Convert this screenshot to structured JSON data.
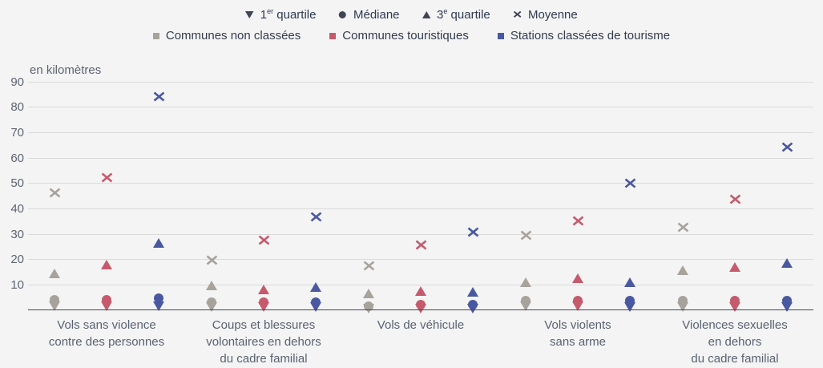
{
  "colors": {
    "background": "#f4f4f5",
    "grid": "#dadada",
    "axis_line": "#46484e",
    "tick_text": "#5d6470",
    "category_text": "#596270",
    "legend_stat_marker": "#3f4554",
    "series_gray": "#a7a39c",
    "series_red": "#c65a6d",
    "series_blue": "#4a58a1"
  },
  "legend": {
    "stats": [
      {
        "key": "q1",
        "shape": "triangle-down",
        "pre": "1",
        "sup": "er",
        "post": " quartile"
      },
      {
        "key": "median",
        "shape": "circle",
        "pre": "Médiane",
        "sup": "",
        "post": ""
      },
      {
        "key": "q3",
        "shape": "triangle-up",
        "pre": "3",
        "sup": "e",
        "post": " quartile"
      },
      {
        "key": "mean",
        "shape": "x",
        "pre": "Moyenne",
        "sup": "",
        "post": ""
      }
    ],
    "series": [
      {
        "label": "Communes non classées",
        "color": "#a7a39c"
      },
      {
        "label": "Communes touristiques",
        "color": "#c65a6d"
      },
      {
        "label": "Stations classées de tourisme",
        "color": "#4a58a1"
      }
    ]
  },
  "chart_data": {
    "type": "scatter",
    "unit_label": "en kilomètres",
    "ylim": [
      0,
      90
    ],
    "yticks": [
      90,
      80,
      70,
      60,
      50,
      40,
      30,
      20,
      10
    ],
    "grid": true,
    "legend_position": "top",
    "categories": [
      {
        "name": "Vols sans violence contre des personnes",
        "lines": [
          "Vols sans violence",
          "contre des personnes"
        ]
      },
      {
        "name": "Coups et blessures volontaires en dehors du cadre familial",
        "lines": [
          "Coups et blessures",
          "volontaires en dehors",
          "du cadre familial"
        ]
      },
      {
        "name": "Vols de véhicule",
        "lines": [
          "Vols de véhicule"
        ]
      },
      {
        "name": "Vols violents sans arme",
        "lines": [
          "Vols violents",
          "sans arme"
        ]
      },
      {
        "name": "Violences sexuelles en dehors du cadre familial",
        "lines": [
          "Violences sexuelles",
          "en dehors",
          "du cadre familial"
        ]
      }
    ],
    "stats": [
      "1er quartile",
      "Médiane",
      "3e quartile",
      "Moyenne"
    ],
    "series": [
      {
        "name": "Communes non classées",
        "color": "#a7a39c",
        "q1": [
          1.5,
          1,
          0.5,
          1.5,
          1
        ],
        "median": [
          4,
          3,
          1.5,
          3.5,
          3.5
        ],
        "q3": [
          14.5,
          9.5,
          6.5,
          11,
          15.5
        ],
        "mean": [
          46,
          19.5,
          17.5,
          29.5,
          32.5
        ]
      },
      {
        "name": "Communes touristiques",
        "color": "#c65a6d",
        "q1": [
          1.5,
          1,
          0.5,
          1.5,
          1
        ],
        "median": [
          4,
          3,
          2,
          3.5,
          3.5
        ],
        "q3": [
          18,
          8,
          7.5,
          12.5,
          17
        ],
        "mean": [
          52,
          27.5,
          25.5,
          35,
          43.5
        ]
      },
      {
        "name": "Stations classées de tourisme",
        "color": "#4a58a1",
        "q1": [
          1.5,
          1,
          0.5,
          1,
          1
        ],
        "median": [
          4.5,
          3,
          2,
          3.5,
          3.5
        ],
        "q3": [
          26.5,
          9,
          7,
          11,
          18.5
        ],
        "mean": [
          84,
          36.5,
          30.5,
          50,
          64
        ]
      }
    ]
  }
}
